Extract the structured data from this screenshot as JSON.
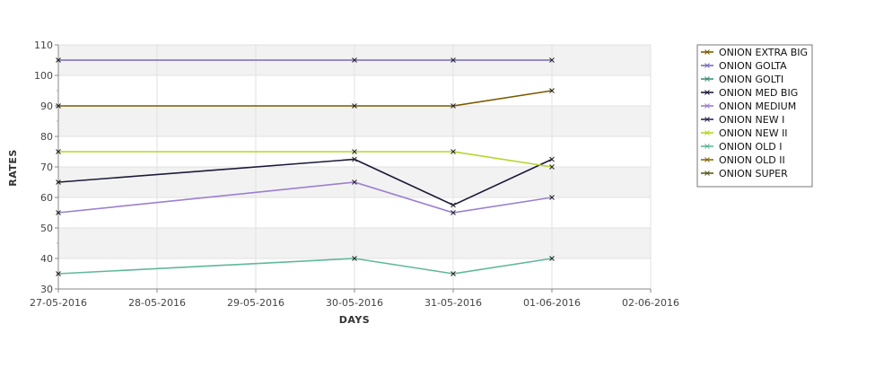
{
  "chart_data": {
    "type": "line",
    "title": "",
    "xlabel": "DAYS",
    "ylabel": "RATES",
    "x_ticks": [
      "27-05-2016",
      "28-05-2016",
      "29-05-2016",
      "30-05-2016",
      "31-05-2016",
      "01-06-2016",
      "02-06-2016"
    ],
    "ylim": [
      30,
      110
    ],
    "y_ticks": [
      30,
      40,
      50,
      60,
      70,
      80,
      90,
      100,
      110
    ],
    "grid": true,
    "legend_position": "right",
    "series": [
      {
        "name": "ONION EXTRA BIG",
        "color": "#7a5a00",
        "x": [
          "27-05-2016",
          "30-05-2016",
          "31-05-2016",
          "01-06-2016"
        ],
        "values": [
          90,
          90,
          90,
          95
        ],
        "draw_line": true
      },
      {
        "name": "ONION GOLTA",
        "color": "#7a6bb8",
        "x": [
          "27-05-2016",
          "30-05-2016",
          "31-05-2016",
          "01-06-2016"
        ],
        "values": [
          105,
          105,
          105,
          105
        ],
        "draw_line": true
      },
      {
        "name": "ONION GOLTI",
        "color": "#3f8f7a",
        "x": [],
        "values": [],
        "draw_line": false
      },
      {
        "name": "ONION MED BIG",
        "color": "#1d1a3a",
        "x": [
          "27-05-2016",
          "30-05-2016",
          "31-05-2016",
          "01-06-2016"
        ],
        "values": [
          65,
          72.5,
          57.5,
          72.5
        ],
        "draw_line": true
      },
      {
        "name": "ONION MEDIUM",
        "color": "#9b7fd0",
        "x": [
          "27-05-2016",
          "30-05-2016",
          "31-05-2016",
          "01-06-2016"
        ],
        "values": [
          55,
          65,
          55,
          60
        ],
        "draw_line": true
      },
      {
        "name": "ONION NEW I",
        "color": "#2a2a5a",
        "x": [],
        "values": [],
        "draw_line": false
      },
      {
        "name": "ONION NEW II",
        "color": "#b5d52a",
        "x": [
          "27-05-2016",
          "30-05-2016",
          "31-05-2016",
          "01-06-2016"
        ],
        "values": [
          75,
          75,
          75,
          70
        ],
        "draw_line": true
      },
      {
        "name": "ONION OLD I",
        "color": "#5fb89a",
        "x": [
          "27-05-2016",
          "30-05-2016",
          "31-05-2016",
          "01-06-2016"
        ],
        "values": [
          35,
          40,
          35,
          40
        ],
        "draw_line": true
      },
      {
        "name": "ONION OLD II",
        "color": "#8a6a10",
        "x": [],
        "values": [],
        "draw_line": false
      },
      {
        "name": "ONION SUPER",
        "color": "#5a5a20",
        "x": [],
        "values": [],
        "draw_line": false
      }
    ]
  }
}
